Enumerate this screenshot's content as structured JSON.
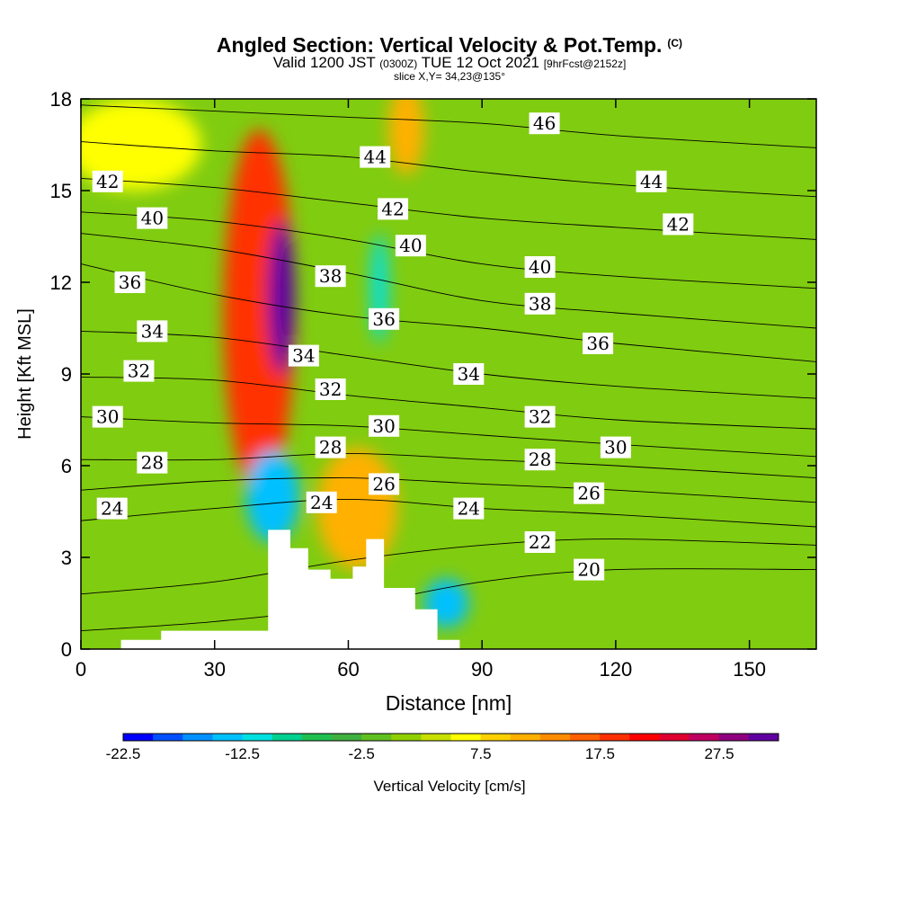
{
  "title": {
    "main": "Angled Section: Vertical Velocity & Pot.Temp.",
    "copyright": "(C)",
    "valid_prefix": "Valid 1200 JST",
    "valid_utc": "(0300Z)",
    "valid_date": "TUE 12 Oct 2021",
    "forecast": "[9hrFcst@2152z]",
    "slice": "slice X,Y= 34,23@135°"
  },
  "chart_data": {
    "type": "heatmap",
    "xlabel": "Distance [nm]",
    "ylabel": "Height [Kft MSL]",
    "xlim": [
      0,
      165
    ],
    "ylim": [
      0,
      18
    ],
    "x_ticks": [
      0,
      30,
      60,
      90,
      120,
      150
    ],
    "y_ticks": [
      0,
      3,
      6,
      9,
      12,
      15,
      18
    ],
    "colorbar": {
      "label": "Vertical Velocity [cm/s]",
      "tick_labels": [
        "-22.5",
        "-12.5",
        "-2.5",
        "7.5",
        "17.5",
        "27.5"
      ],
      "colors": [
        "#0000ff",
        "#0050ff",
        "#0090ff",
        "#00c0ff",
        "#00e0e0",
        "#00d090",
        "#20c050",
        "#40b040",
        "#60c020",
        "#90d000",
        "#c8e000",
        "#ffff00",
        "#ffd000",
        "#ffb000",
        "#ff8c00",
        "#ff6000",
        "#ff3000",
        "#ff0000",
        "#e00030",
        "#c00060",
        "#900080",
        "#6000a0"
      ]
    },
    "background_color": "#80cc10",
    "field_features": [
      {
        "value": 32,
        "x": 40,
        "y": 11,
        "rx": 8,
        "ry": 6,
        "color": "#ff3000"
      },
      {
        "value": 30,
        "x": 45,
        "y": 11.5,
        "rx": 3,
        "ry": 2.5,
        "color": "#6000a0"
      },
      {
        "value": -25,
        "x": 45,
        "y": 4.6,
        "rx": 2,
        "ry": 0.9,
        "color": "#0000ff"
      },
      {
        "value": -15,
        "x": 43,
        "y": 5,
        "rx": 6,
        "ry": 1.5,
        "color": "#00c0ff"
      },
      {
        "value": -12,
        "x": 67,
        "y": 11.8,
        "rx": 2,
        "ry": 1.8,
        "color": "#00e0e0"
      },
      {
        "value": -14,
        "x": 82,
        "y": 1.5,
        "rx": 5,
        "ry": 0.8,
        "color": "#00c0ff"
      },
      {
        "value": 12,
        "x": 62,
        "y": 4.6,
        "rx": 9,
        "ry": 2,
        "color": "#ffb000"
      },
      {
        "value": 10,
        "x": 73,
        "y": 17,
        "rx": 4,
        "ry": 1.5,
        "color": "#ffb000"
      },
      {
        "value": 6,
        "x": 12,
        "y": 16.5,
        "rx": 15,
        "ry": 1.5,
        "color": "#ffff00"
      }
    ],
    "terrain": [
      [
        9,
        0
      ],
      [
        9,
        0.3
      ],
      [
        18,
        0.3
      ],
      [
        18,
        0.6
      ],
      [
        42,
        0.6
      ],
      [
        42,
        3.9
      ],
      [
        47,
        3.9
      ],
      [
        47,
        3.3
      ],
      [
        51,
        3.3
      ],
      [
        51,
        2.6
      ],
      [
        56,
        2.6
      ],
      [
        56,
        2.3
      ],
      [
        61,
        2.3
      ],
      [
        61,
        2.7
      ],
      [
        64,
        2.7
      ],
      [
        64,
        3.6
      ],
      [
        68,
        3.6
      ],
      [
        68,
        2.0
      ],
      [
        75,
        2.0
      ],
      [
        75,
        1.3
      ],
      [
        80,
        1.3
      ],
      [
        80,
        0.3
      ],
      [
        85,
        0.3
      ],
      [
        85,
        0
      ]
    ],
    "isentropes": [
      {
        "value": 20,
        "points": [
          [
            0,
            0.6
          ],
          [
            30,
            0.9
          ],
          [
            60,
            1.4
          ],
          [
            90,
            2.2
          ],
          [
            120,
            2.6
          ],
          [
            165,
            2.6
          ]
        ]
      },
      {
        "value": 22,
        "points": [
          [
            0,
            1.8
          ],
          [
            30,
            2.2
          ],
          [
            60,
            2.9
          ],
          [
            90,
            3.4
          ],
          [
            120,
            3.6
          ],
          [
            165,
            3.4
          ]
        ]
      },
      {
        "value": 24,
        "points": [
          [
            0,
            4.2
          ],
          [
            30,
            4.6
          ],
          [
            60,
            4.9
          ],
          [
            90,
            4.6
          ],
          [
            120,
            4.4
          ],
          [
            165,
            4.0
          ]
        ]
      },
      {
        "value": 26,
        "points": [
          [
            0,
            5.2
          ],
          [
            30,
            5.5
          ],
          [
            60,
            5.6
          ],
          [
            90,
            5.4
          ],
          [
            120,
            5.2
          ],
          [
            165,
            4.8
          ]
        ]
      },
      {
        "value": 28,
        "points": [
          [
            0,
            6.2
          ],
          [
            30,
            6.2
          ],
          [
            60,
            6.4
          ],
          [
            90,
            6.2
          ],
          [
            120,
            6.0
          ],
          [
            165,
            5.6
          ]
        ]
      },
      {
        "value": 30,
        "points": [
          [
            0,
            7.6
          ],
          [
            30,
            7.4
          ],
          [
            60,
            7.3
          ],
          [
            90,
            7.0
          ],
          [
            120,
            6.7
          ],
          [
            165,
            6.3
          ]
        ]
      },
      {
        "value": 32,
        "points": [
          [
            0,
            8.9
          ],
          [
            30,
            8.8
          ],
          [
            60,
            8.3
          ],
          [
            90,
            7.9
          ],
          [
            120,
            7.5
          ],
          [
            165,
            7.2
          ]
        ]
      },
      {
        "value": 34,
        "points": [
          [
            0,
            10.4
          ],
          [
            30,
            10.2
          ],
          [
            60,
            9.6
          ],
          [
            90,
            9.0
          ],
          [
            120,
            8.6
          ],
          [
            165,
            8.2
          ]
        ]
      },
      {
        "value": 36,
        "points": [
          [
            0,
            12.6
          ],
          [
            30,
            11.6
          ],
          [
            60,
            10.9
          ],
          [
            90,
            10.5
          ],
          [
            120,
            10.0
          ],
          [
            165,
            9.4
          ]
        ]
      },
      {
        "value": 38,
        "points": [
          [
            0,
            13.6
          ],
          [
            30,
            13.1
          ],
          [
            60,
            12.3
          ],
          [
            90,
            11.4
          ],
          [
            120,
            11.0
          ],
          [
            165,
            10.5
          ]
        ]
      },
      {
        "value": 40,
        "points": [
          [
            0,
            14.3
          ],
          [
            30,
            14.0
          ],
          [
            60,
            13.4
          ],
          [
            90,
            12.6
          ],
          [
            120,
            12.2
          ],
          [
            165,
            11.8
          ]
        ]
      },
      {
        "value": 42,
        "points": [
          [
            0,
            15.4
          ],
          [
            30,
            15.1
          ],
          [
            60,
            14.6
          ],
          [
            90,
            14.1
          ],
          [
            120,
            13.8
          ],
          [
            165,
            13.4
          ]
        ]
      },
      {
        "value": 44,
        "points": [
          [
            0,
            16.6
          ],
          [
            30,
            16.3
          ],
          [
            60,
            16.1
          ],
          [
            90,
            15.6
          ],
          [
            120,
            15.2
          ],
          [
            165,
            14.8
          ]
        ]
      },
      {
        "value": 46,
        "points": [
          [
            0,
            17.8
          ],
          [
            30,
            17.6
          ],
          [
            60,
            17.4
          ],
          [
            90,
            17.2
          ],
          [
            120,
            16.8
          ],
          [
            165,
            16.4
          ]
        ]
      }
    ],
    "contour_labels": [
      {
        "text": "46",
        "x": 104,
        "y": 17.2
      },
      {
        "text": "44",
        "x": 66,
        "y": 16.1
      },
      {
        "text": "44",
        "x": 128,
        "y": 15.3
      },
      {
        "text": "42",
        "x": 6,
        "y": 15.3
      },
      {
        "text": "42",
        "x": 70,
        "y": 14.4
      },
      {
        "text": "42",
        "x": 134,
        "y": 13.9
      },
      {
        "text": "40",
        "x": 16,
        "y": 14.1
      },
      {
        "text": "40",
        "x": 74,
        "y": 13.2
      },
      {
        "text": "40",
        "x": 103,
        "y": 12.5
      },
      {
        "text": "38",
        "x": 56,
        "y": 12.2
      },
      {
        "text": "38",
        "x": 103,
        "y": 11.3
      },
      {
        "text": "36",
        "x": 11,
        "y": 12.0
      },
      {
        "text": "36",
        "x": 68,
        "y": 10.8
      },
      {
        "text": "36",
        "x": 116,
        "y": 10.0
      },
      {
        "text": "34",
        "x": 16,
        "y": 10.4
      },
      {
        "text": "34",
        "x": 50,
        "y": 9.6
      },
      {
        "text": "34",
        "x": 87,
        "y": 9.0
      },
      {
        "text": "32",
        "x": 13,
        "y": 9.1
      },
      {
        "text": "32",
        "x": 56,
        "y": 8.5
      },
      {
        "text": "32",
        "x": 103,
        "y": 7.6
      },
      {
        "text": "30",
        "x": 6,
        "y": 7.6
      },
      {
        "text": "30",
        "x": 68,
        "y": 7.3
      },
      {
        "text": "30",
        "x": 120,
        "y": 6.6
      },
      {
        "text": "28",
        "x": 16,
        "y": 6.1
      },
      {
        "text": "28",
        "x": 56,
        "y": 6.6
      },
      {
        "text": "28",
        "x": 103,
        "y": 6.2
      },
      {
        "text": "26",
        "x": 68,
        "y": 5.4
      },
      {
        "text": "26",
        "x": 114,
        "y": 5.1
      },
      {
        "text": "24",
        "x": 7,
        "y": 4.6
      },
      {
        "text": "24",
        "x": 54,
        "y": 4.8
      },
      {
        "text": "24",
        "x": 87,
        "y": 4.6
      },
      {
        "text": "22",
        "x": 103,
        "y": 3.5
      },
      {
        "text": "20",
        "x": 114,
        "y": 2.6
      }
    ]
  }
}
